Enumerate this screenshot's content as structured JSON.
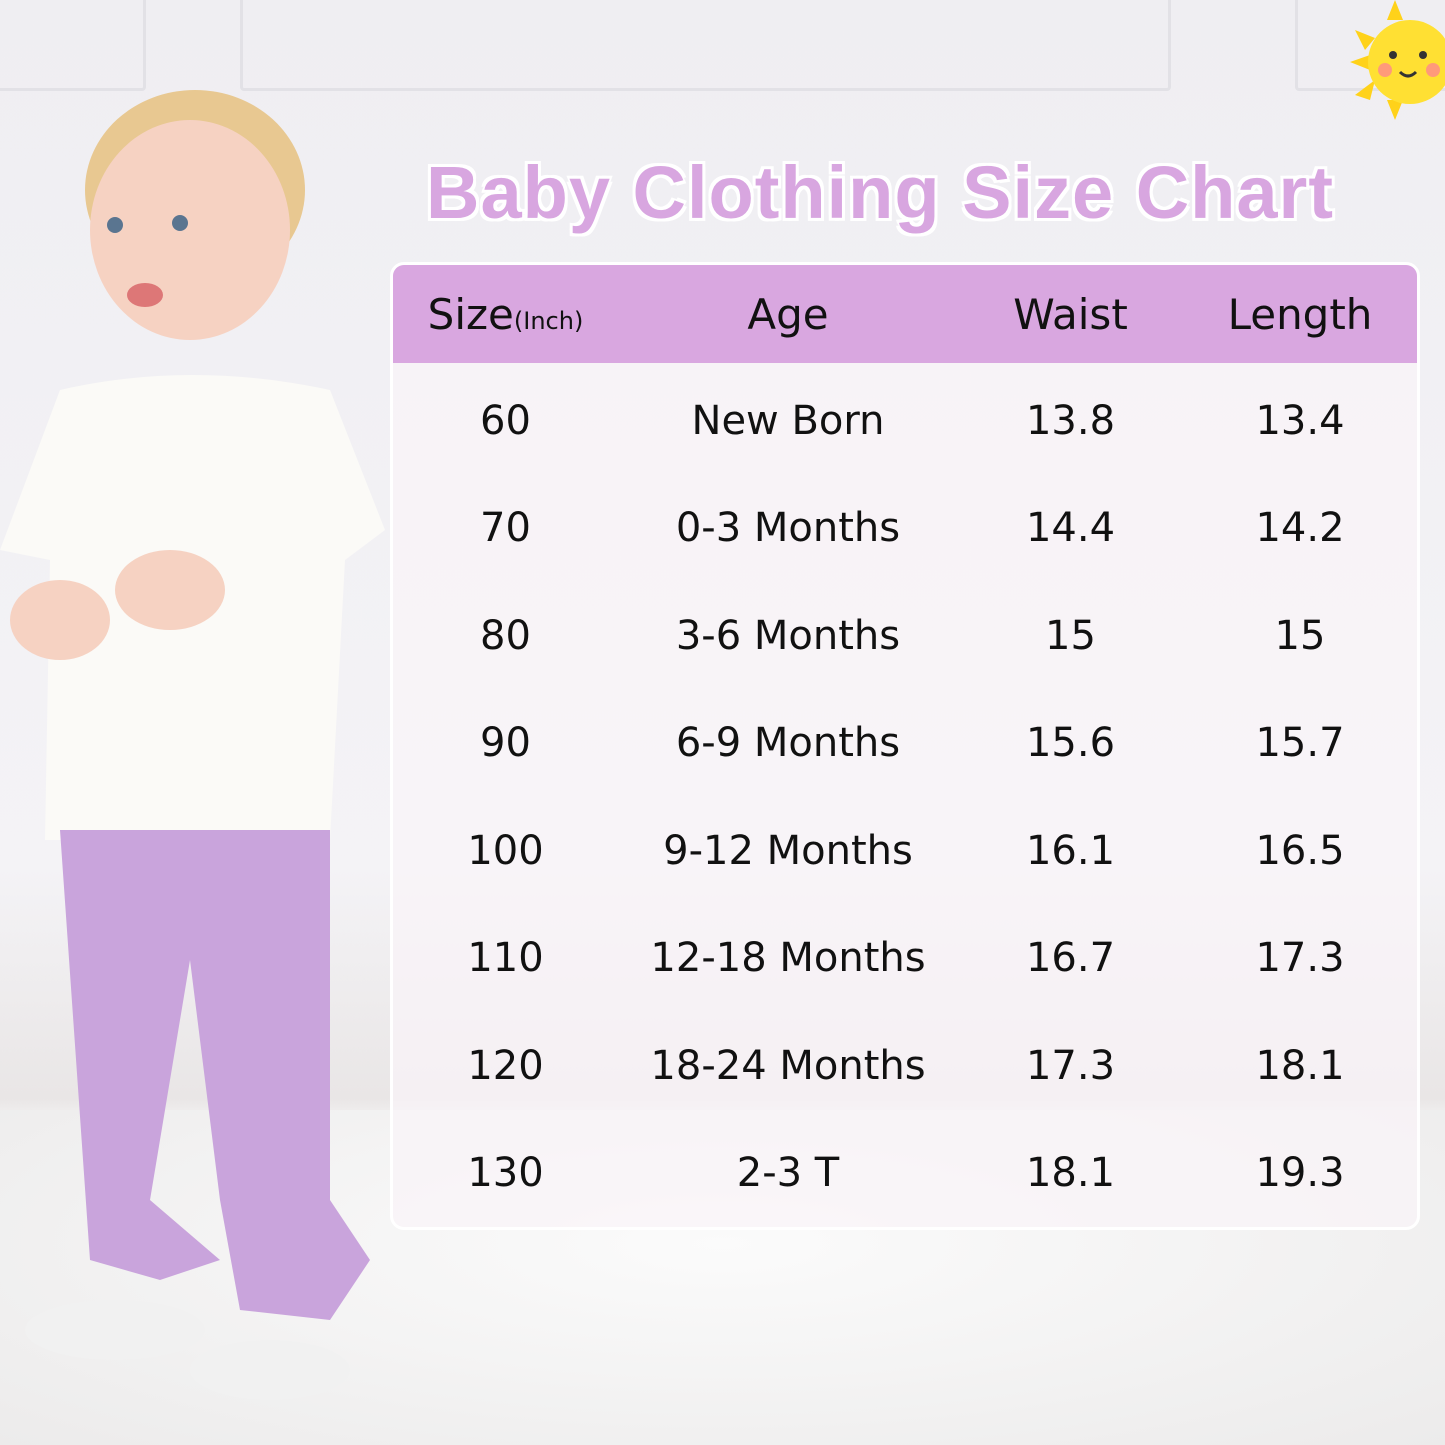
{
  "title": "Baby Clothing Size Chart",
  "colors": {
    "accent": "#d9a7e0",
    "title": "#d8a6e0",
    "text": "#111111"
  },
  "table": {
    "headers": {
      "size": "Size",
      "size_unit": "(Inch)",
      "age": "Age",
      "waist": "Waist",
      "length": "Length"
    },
    "rows": [
      {
        "size": "60",
        "age": "New Born",
        "waist": "13.8",
        "length": "13.4"
      },
      {
        "size": "70",
        "age": "0-3 Months",
        "waist": "14.4",
        "length": "14.2"
      },
      {
        "size": "80",
        "age": "3-6 Months",
        "waist": "15",
        "length": "15"
      },
      {
        "size": "90",
        "age": "6-9 Months",
        "waist": "15.6",
        "length": "15.7"
      },
      {
        "size": "100",
        "age": "9-12 Months",
        "waist": "16.1",
        "length": "16.5"
      },
      {
        "size": "110",
        "age": "12-18 Months",
        "waist": "16.7",
        "length": "17.3"
      },
      {
        "size": "120",
        "age": "18-24 Months",
        "waist": "17.3",
        "length": "18.1"
      },
      {
        "size": "130",
        "age": "2-3 T",
        "waist": "18.1",
        "length": "19.3"
      }
    ]
  }
}
